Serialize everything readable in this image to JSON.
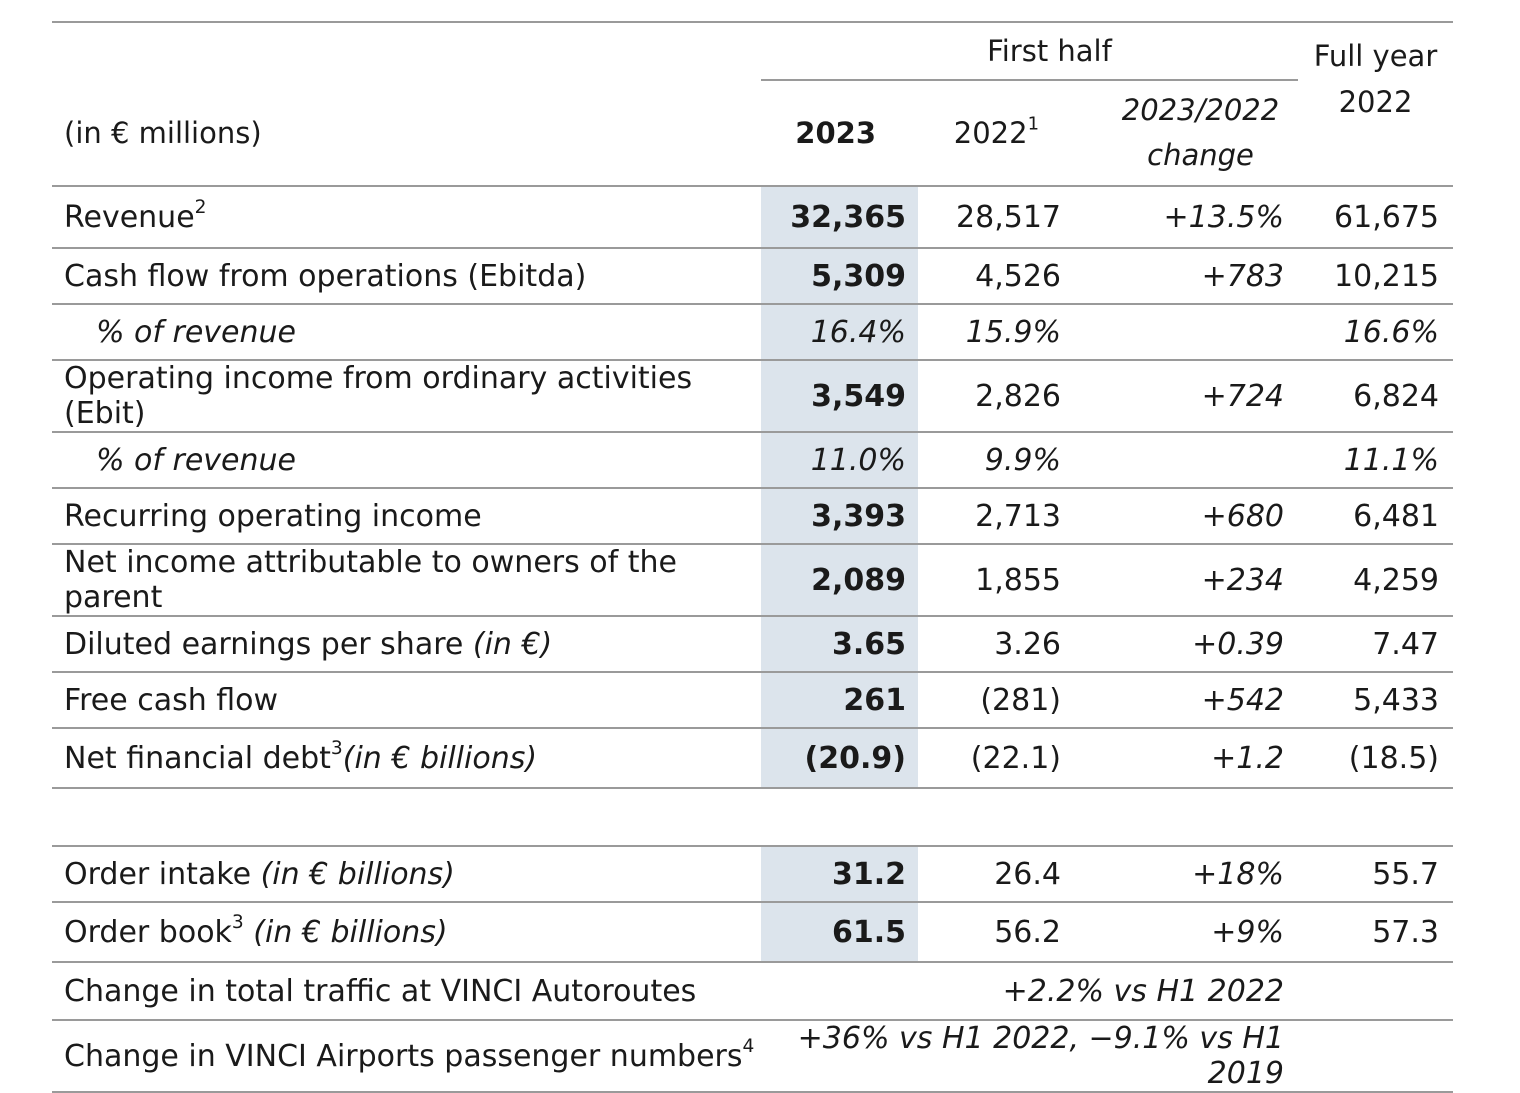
{
  "header": {
    "first_half": "First half",
    "full_year": "Full year",
    "full_year_2022": "2022",
    "unit_label": "(in € millions)",
    "col_2023": "2023",
    "col_2022": "2022",
    "col_2022_note": "1",
    "col_change_1": "2023/2022",
    "col_change_2": "change"
  },
  "rows": [
    {
      "label": "Revenue",
      "note": "2",
      "v2023": "32,365",
      "v2022": "28,517",
      "change": "+13.5%",
      "fy2022": "61,675"
    },
    {
      "label": "Cash flow from operations (Ebitda)",
      "v2023": "5,309",
      "v2022": "4,526",
      "change": "+783",
      "fy2022": "10,215"
    },
    {
      "label": "% of revenue",
      "v2023": "16.4%",
      "v2022": "15.9%",
      "change": "",
      "fy2022": "16.6%"
    },
    {
      "label": "Operating income from ordinary activities (Ebit)",
      "v2023": "3,549",
      "v2022": "2,826",
      "change": "+724",
      "fy2022": "6,824"
    },
    {
      "label": "% of revenue",
      "v2023": "11.0%",
      "v2022": "9.9%",
      "change": "",
      "fy2022": "11.1%"
    },
    {
      "label": "Recurring operating income",
      "v2023": "3,393",
      "v2022": "2,713",
      "change": "+680",
      "fy2022": "6,481"
    },
    {
      "label": "Net income attributable to owners of the parent",
      "v2023": "2,089",
      "v2022": "1,855",
      "change": "+234",
      "fy2022": "4,259"
    },
    {
      "label": "Diluted earnings per share ",
      "label_unit": "(in €)",
      "v2023": "3.65",
      "v2022": "3.26",
      "change": "+0.39",
      "fy2022": "7.47"
    },
    {
      "label": "Free cash flow",
      "v2023": "261",
      "v2022": "(281)",
      "change": "+542",
      "fy2022": "5,433"
    },
    {
      "label": "Net financial debt",
      "note": "3",
      "label_unit": "(in € billions)",
      "v2023": "(20.9)",
      "v2022": "(22.1)",
      "change": "+1.2",
      "fy2022": "(18.5)"
    }
  ],
  "rows2": [
    {
      "label": "Order intake ",
      "label_unit": "(in € billions)",
      "v2023": "31.2",
      "v2022": "26.4",
      "change": "+18%",
      "fy2022": "55.7"
    },
    {
      "label": "Order book",
      "note": "3",
      "label_unit": " (in € billions)",
      "v2023": "61.5",
      "v2022": "56.2",
      "change": "+9%",
      "fy2022": "57.3"
    }
  ],
  "span_rows": [
    {
      "label": "Change in total traffic at VINCI Autoroutes",
      "value": "+2.2% vs H1 2022"
    },
    {
      "label": "Change in VINCI Airports passenger numbers",
      "note": "4",
      "value": "+36% vs H1 2022, −9.1% vs H1 2019"
    }
  ]
}
